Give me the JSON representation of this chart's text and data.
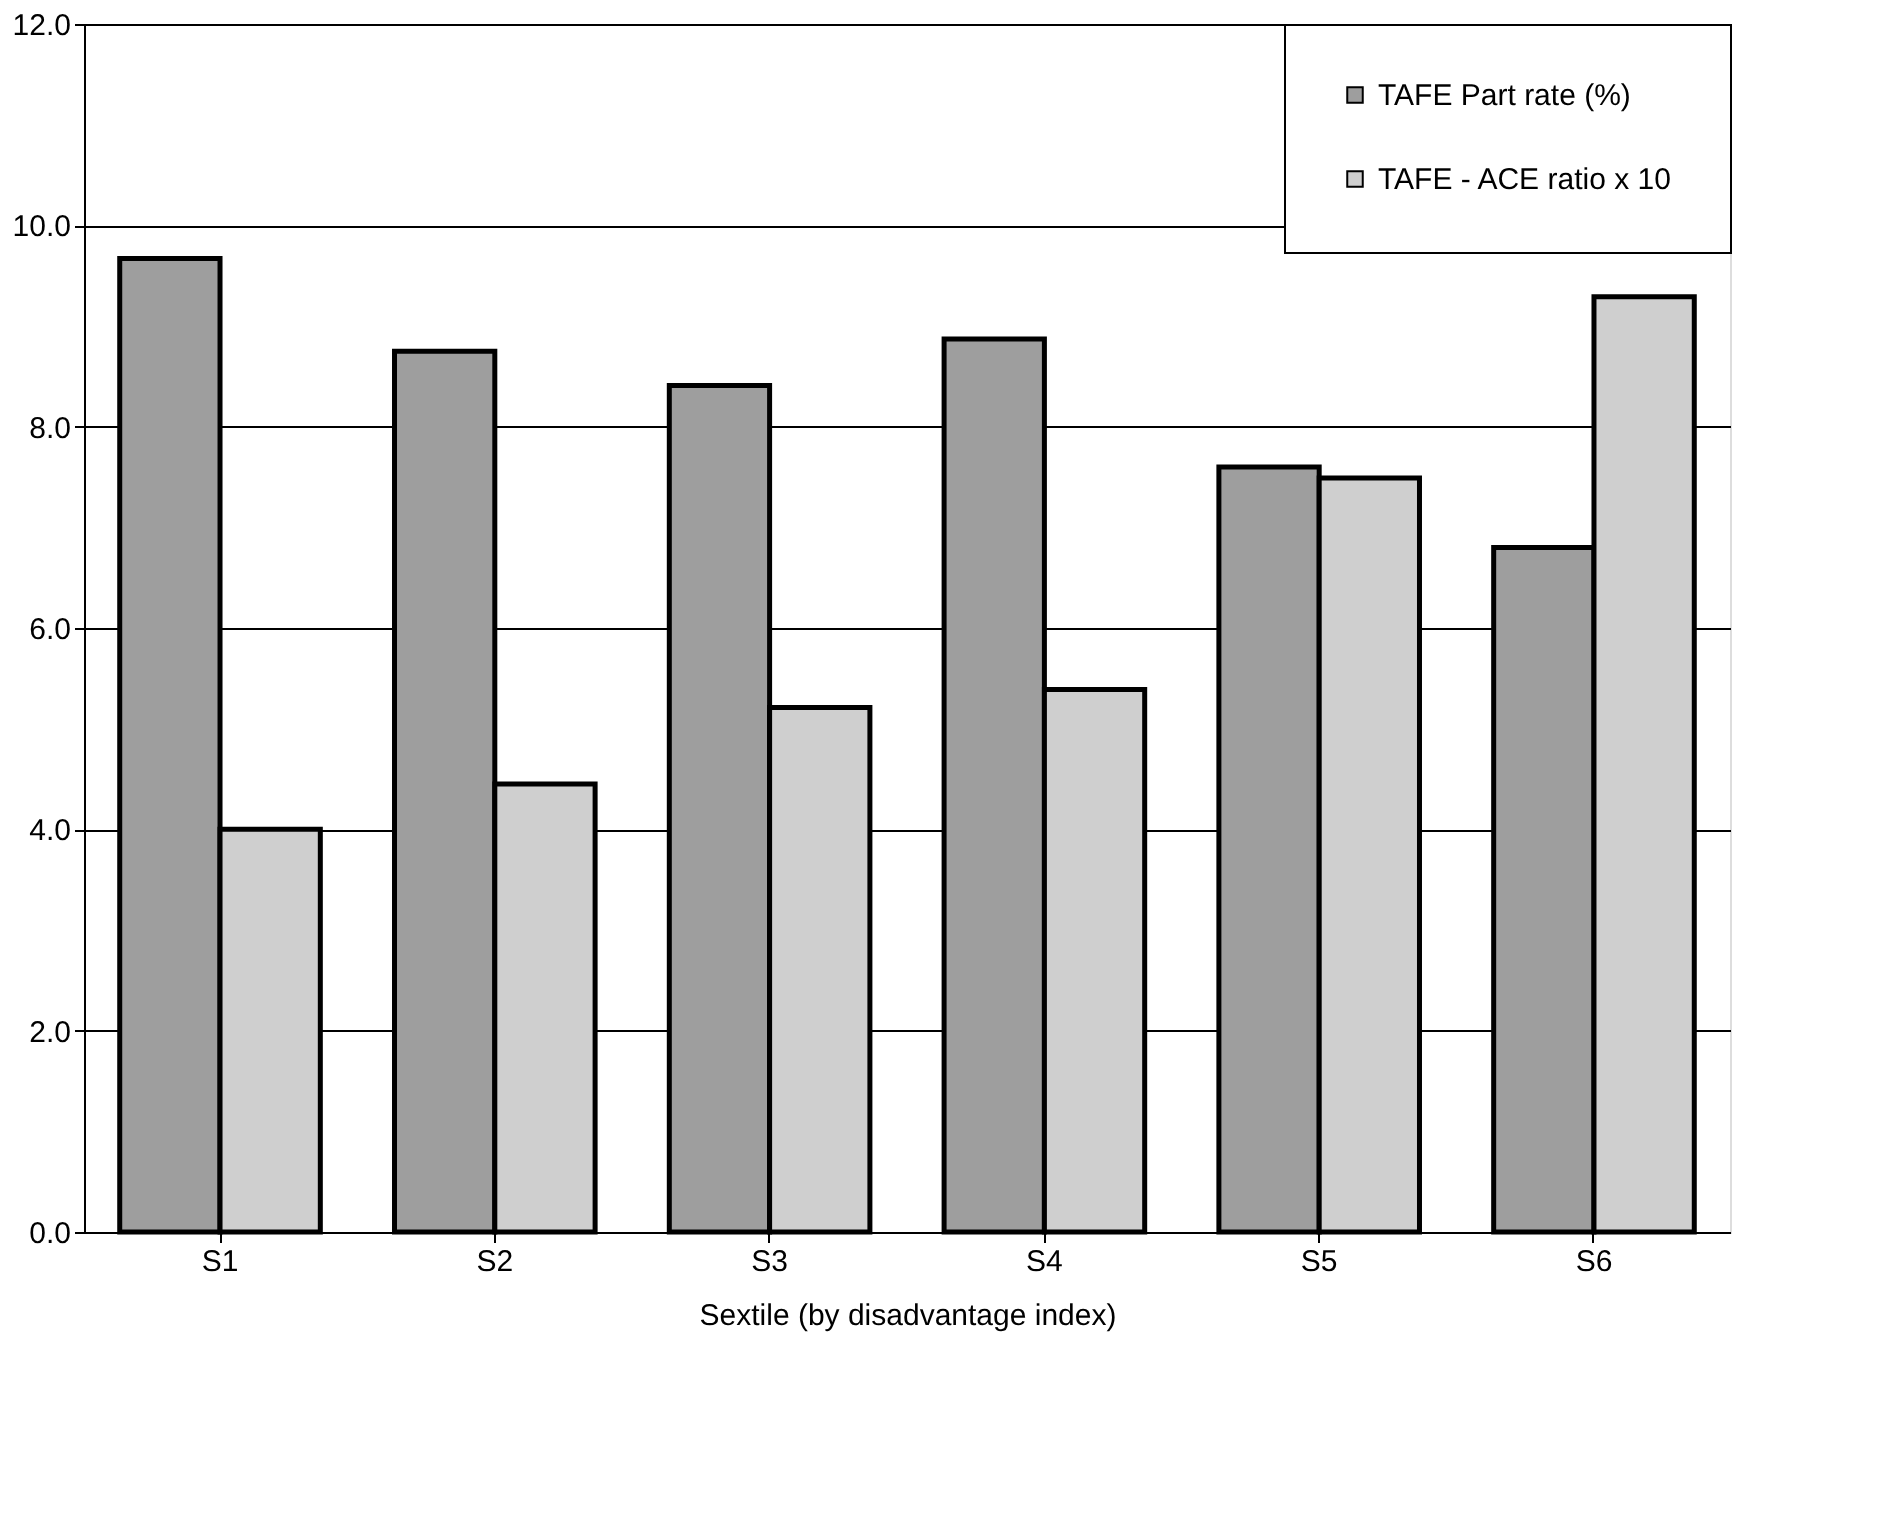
{
  "chart_data": {
    "type": "bar",
    "xlabel": "Sextile (by disadvantage index)",
    "categories": [
      "S1",
      "S2",
      "S3",
      "S4",
      "S5",
      "S6"
    ],
    "series": [
      {
        "name": "TAFE Part rate (%)",
        "color": "#9e9e9e",
        "values": [
          9.67,
          8.75,
          8.41,
          8.87,
          7.6,
          6.8
        ]
      },
      {
        "name": "TAFE - ACE ratio x 10",
        "color": "#cfcfcf",
        "values": [
          4.0,
          4.45,
          5.21,
          5.39,
          7.49,
          9.29
        ]
      }
    ],
    "ylim": [
      0,
      12
    ],
    "yticks": [
      {
        "value": 0,
        "label": "0.0"
      },
      {
        "value": 2,
        "label": "2.0"
      },
      {
        "value": 4,
        "label": "4.0"
      },
      {
        "value": 6,
        "label": "6.0"
      },
      {
        "value": 8,
        "label": "8.0"
      },
      {
        "value": 10,
        "label": "10.0"
      },
      {
        "value": 12,
        "label": "12.0"
      }
    ],
    "grid": "y",
    "legend": "top right"
  }
}
